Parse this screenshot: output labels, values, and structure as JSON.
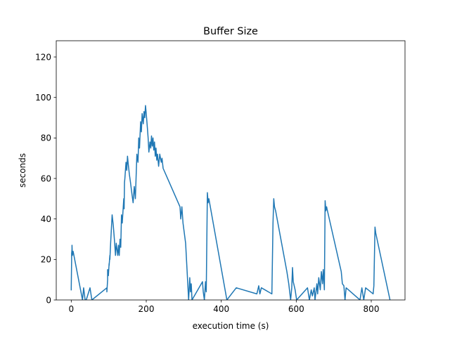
{
  "chart_data": {
    "type": "line",
    "title": "Buffer Size",
    "xlabel": "execution time (s)",
    "ylabel": "seconds",
    "xlim": [
      -40,
      890
    ],
    "ylim": [
      0,
      128
    ],
    "xticks": [
      0,
      200,
      400,
      600,
      800
    ],
    "yticks": [
      0,
      20,
      40,
      60,
      80,
      100,
      120
    ],
    "grid": false,
    "line_color": "#1f77b4",
    "series": [
      {
        "x": [
          0,
          0,
          1,
          1,
          2,
          2,
          3,
          5,
          30,
          33,
          37,
          40,
          45,
          50,
          55,
          95,
          95,
          97,
          97,
          99,
          101,
          101,
          103,
          103,
          105,
          107,
          109,
          112,
          115,
          118,
          120,
          124,
          126,
          128,
          130,
          132,
          134,
          136,
          140,
          141,
          142,
          143,
          146,
          148,
          150,
          152,
          155,
          158,
          162,
          165,
          168,
          171,
          175,
          178,
          180,
          182,
          185,
          187,
          189,
          192,
          194,
          196,
          198,
          199,
          200,
          203,
          205,
          207,
          210,
          212,
          214,
          216,
          218,
          220,
          222,
          224,
          226,
          228,
          230,
          233,
          236,
          240,
          242,
          245,
          290,
          292,
          295,
          298,
          305,
          313,
          316,
          318,
          320,
          322,
          350,
          352,
          355,
          358,
          360,
          363,
          365,
          367,
          415,
          440,
          495,
          500,
          503,
          507,
          535,
          538,
          540,
          542,
          545,
          575,
          580,
          585,
          588,
          590,
          592,
          597,
          601,
          630,
          635,
          640,
          643,
          648,
          650,
          655,
          657,
          660,
          664,
          667,
          670,
          672,
          675,
          677,
          679,
          681,
          682,
          720,
          723,
          727,
          730,
          733,
          770,
          775,
          780,
          785,
          805,
          807,
          810,
          812,
          850
        ],
        "y": [
          5,
          6,
          20,
          23,
          25,
          27,
          22,
          24,
          0,
          6,
          0,
          0,
          3,
          6,
          0,
          6,
          4,
          10,
          15,
          12,
          18,
          17,
          22,
          20,
          28,
          35,
          42,
          37,
          30,
          22,
          28,
          22,
          27,
          22,
          30,
          26,
          42,
          38,
          50,
          45,
          58,
          60,
          68,
          64,
          71,
          67,
          62,
          58,
          52,
          48,
          56,
          50,
          72,
          68,
          80,
          75,
          88,
          83,
          92,
          87,
          93,
          90,
          96,
          94,
          92,
          85,
          80,
          73,
          78,
          75,
          81,
          76,
          80,
          74,
          78,
          71,
          75,
          69,
          72,
          66,
          72,
          68,
          70,
          65,
          46,
          40,
          46,
          38,
          28,
          0,
          11,
          4,
          8,
          0,
          9,
          4,
          0,
          9,
          4,
          53,
          48,
          50,
          0,
          6,
          3,
          7,
          3,
          6,
          3,
          38,
          50,
          46,
          44,
          14,
          8,
          0,
          6,
          16,
          9,
          5,
          0,
          6,
          0,
          5,
          2,
          6,
          0,
          8,
          3,
          11,
          5,
          14,
          8,
          15,
          5,
          49,
          44,
          46,
          45,
          14,
          8,
          7,
          0,
          6,
          0,
          6,
          0,
          6,
          3,
          7,
          36,
          33,
          0
        ]
      }
    ]
  }
}
